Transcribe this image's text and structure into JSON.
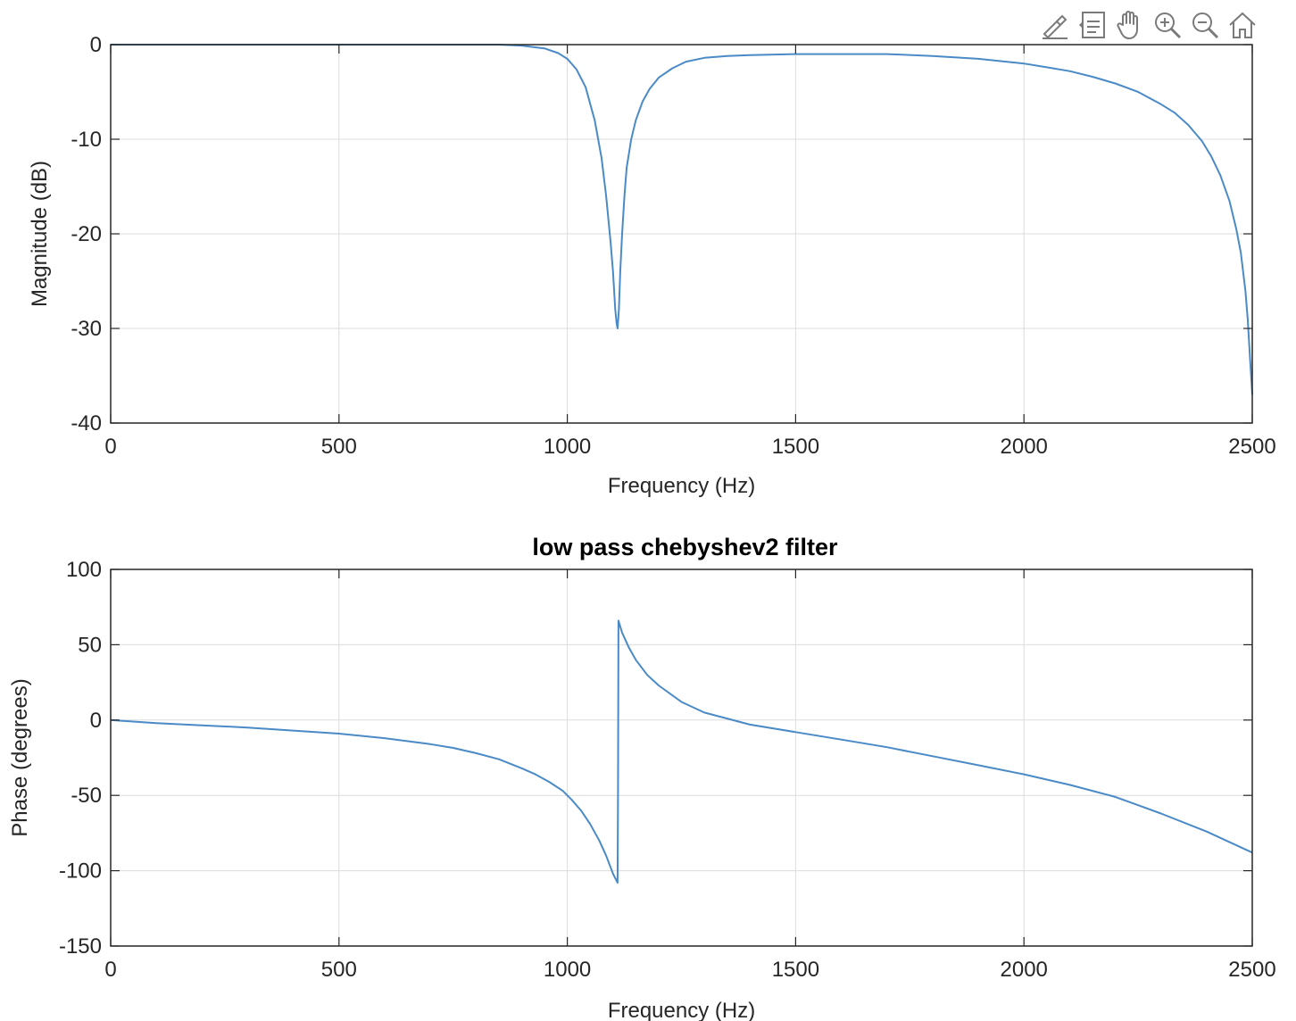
{
  "toolbar": {
    "icons": [
      "brush-icon",
      "datatip-icon",
      "pan-hand-icon",
      "zoom-in-icon",
      "zoom-out-icon",
      "home-icon"
    ]
  },
  "colors": {
    "line": "#4a8ac6",
    "grid": "#dcdcdc",
    "axis": "#262626"
  },
  "chart_data": [
    {
      "type": "line",
      "title": "",
      "xlabel": "Frequency (Hz)",
      "ylabel": "Magnitude (dB)",
      "xlim": [
        0,
        2500
      ],
      "ylim": [
        -40,
        0
      ],
      "xticks": [
        0,
        500,
        1000,
        1500,
        2000,
        2500
      ],
      "yticks": [
        0,
        -10,
        -20,
        -30,
        -40
      ],
      "xtick_labels": [
        "0",
        "500",
        "1000",
        "1500",
        "2000",
        "2500"
      ],
      "ytick_labels": [
        "0",
        "-10",
        "-20",
        "-30",
        "-40"
      ],
      "grid": true,
      "series": [
        {
          "x": [
            0,
            500,
            850,
            900,
            950,
            980,
            1000,
            1020,
            1040,
            1060,
            1075,
            1085,
            1095,
            1100,
            1105,
            1108,
            1110,
            1113,
            1116,
            1120,
            1125,
            1130,
            1140,
            1150,
            1165,
            1180,
            1200,
            1230,
            1260,
            1300,
            1350,
            1400,
            1500,
            1600,
            1700,
            1800,
            1900,
            2000,
            2050,
            2100,
            2150,
            2200,
            2250,
            2300,
            2330,
            2360,
            2390,
            2410,
            2430,
            2450,
            2465,
            2475,
            2485,
            2490,
            2495,
            2500
          ],
          "y": [
            0,
            0,
            0,
            -0.1,
            -0.4,
            -0.9,
            -1.5,
            -2.6,
            -4.5,
            -8,
            -12,
            -16,
            -21,
            -24,
            -28,
            -29.5,
            -30,
            -28,
            -24,
            -20,
            -16,
            -13,
            -10,
            -8,
            -6,
            -4.7,
            -3.5,
            -2.5,
            -1.8,
            -1.4,
            -1.2,
            -1.1,
            -1.0,
            -1.0,
            -1.0,
            -1.2,
            -1.5,
            -2.0,
            -2.4,
            -2.8,
            -3.4,
            -4.1,
            -5.0,
            -6.3,
            -7.2,
            -8.5,
            -10.2,
            -11.8,
            -13.8,
            -16.5,
            -19.5,
            -22,
            -26,
            -29,
            -33,
            -37
          ]
        }
      ]
    },
    {
      "type": "line",
      "title": "low pass chebyshev2 filter",
      "xlabel": "Frequency (Hz)",
      "ylabel": "Phase (degrees)",
      "xlim": [
        0,
        2500
      ],
      "ylim": [
        -150,
        100
      ],
      "xticks": [
        0,
        500,
        1000,
        1500,
        2000,
        2500
      ],
      "yticks": [
        100,
        50,
        0,
        -50,
        -100,
        -150
      ],
      "xtick_labels": [
        "0",
        "500",
        "1000",
        "1500",
        "2000",
        "2500"
      ],
      "ytick_labels": [
        "100",
        "50",
        "0",
        "-50",
        "-100",
        "-150"
      ],
      "grid": true,
      "series": [
        {
          "x": [
            0,
            100,
            200,
            300,
            400,
            500,
            600,
            700,
            750,
            800,
            850,
            900,
            930,
            960,
            990,
            1010,
            1030,
            1050,
            1070,
            1085,
            1100,
            1110,
            1111,
            1112,
            1120,
            1135,
            1150,
            1175,
            1200,
            1250,
            1300,
            1350,
            1400,
            1500,
            1600,
            1700,
            1800,
            1900,
            2000,
            2100,
            2200,
            2300,
            2400,
            2500
          ],
          "y": [
            0,
            -2,
            -3.5,
            -5,
            -7,
            -9,
            -12,
            -16,
            -18.5,
            -22,
            -26,
            -32,
            -36,
            -41,
            -47,
            -53,
            -60,
            -69,
            -80,
            -90,
            -102,
            -108,
            -50,
            66,
            58,
            48,
            40,
            30,
            23,
            12,
            5,
            1,
            -3,
            -8,
            -13,
            -18,
            -24,
            -30,
            -36,
            -43,
            -51,
            -62,
            -74,
            -88
          ]
        }
      ]
    }
  ]
}
